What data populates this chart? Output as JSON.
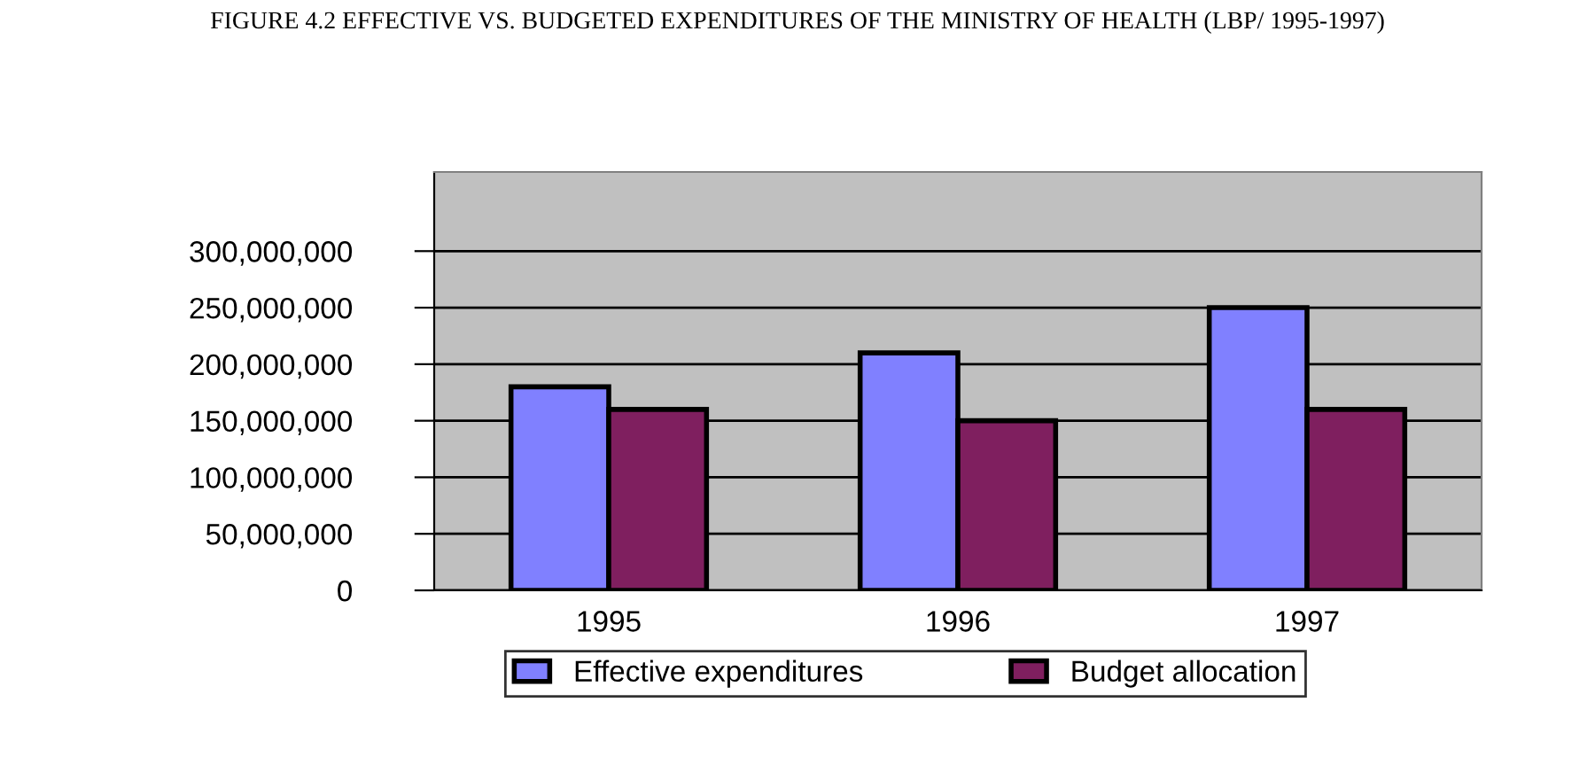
{
  "chart_data": {
    "type": "bar",
    "title": "FIGURE 4.2 EFFECTIVE VS. BUDGETED EXPENDITURES OF THE MINISTRY OF HEALTH (LBP/ 1995-1997)",
    "categories": [
      "1995",
      "1996",
      "1997"
    ],
    "series": [
      {
        "name": "Effective expenditures",
        "color": "#8080ff",
        "values": [
          180000000,
          210000000,
          250000000
        ]
      },
      {
        "name": "Budget allocation",
        "color": "#7f1f5f",
        "values": [
          160000000,
          150000000,
          160000000
        ]
      }
    ],
    "ylim": [
      0,
      370000000
    ],
    "yticks": [
      0,
      {
        "value": 50000000,
        "label": "50,000,000"
      },
      {
        "value": 100000000,
        "label": "100,000,000"
      },
      {
        "value": 150000000,
        "label": "150,000,000"
      },
      {
        "value": 200000000,
        "label": "200,000,000"
      },
      {
        "value": 250000000,
        "label": "250,000,000"
      },
      {
        "value": 300000000,
        "label": "300,000,000"
      }
    ],
    "grid": "y",
    "legend": "bottom"
  }
}
